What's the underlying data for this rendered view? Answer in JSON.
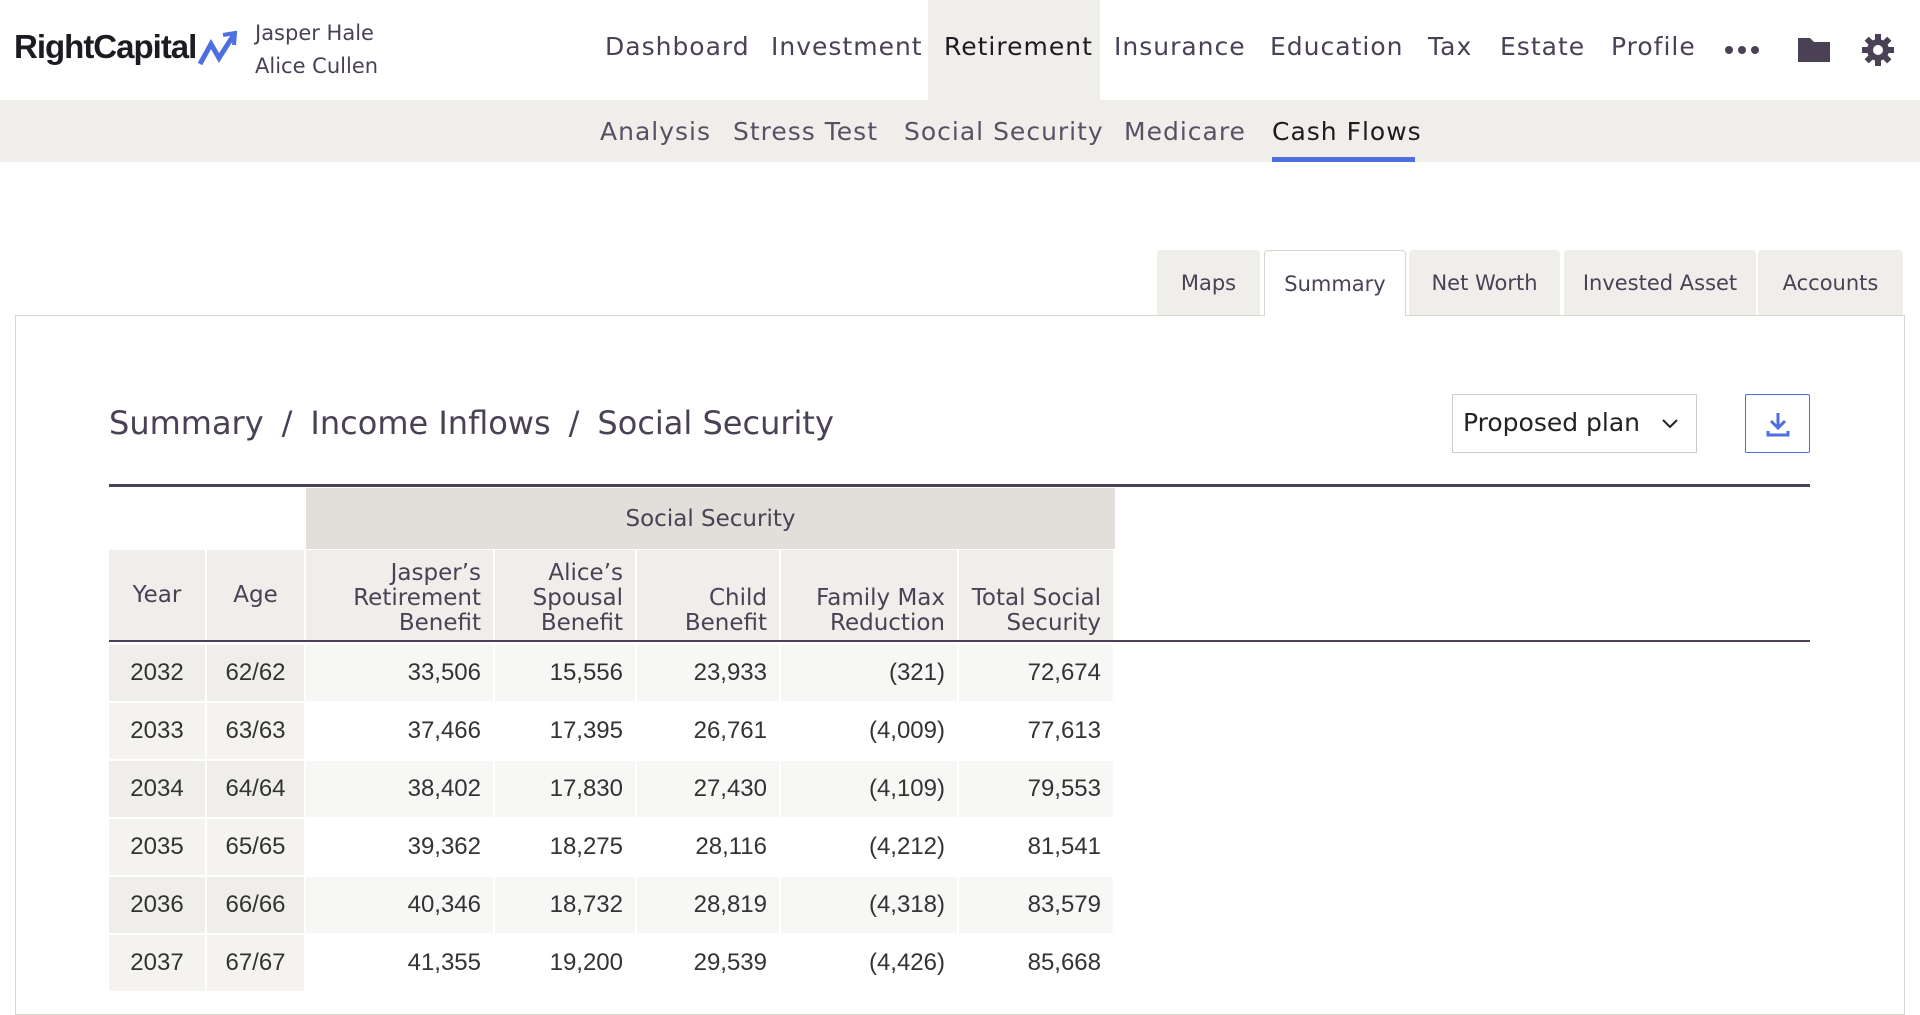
{
  "header": {
    "logo": "RightCapital",
    "clients": [
      "Jasper Hale",
      "Alice Cullen"
    ],
    "nav": [
      "Dashboard",
      "Investment",
      "Retirement",
      "Insurance",
      "Education",
      "Tax",
      "Estate",
      "Profile"
    ],
    "subnav": [
      "Analysis",
      "Stress Test",
      "Social Security",
      "Medicare",
      "Cash Flows"
    ]
  },
  "tabs": [
    "Maps",
    "Summary",
    "Net Worth",
    "Invested Asset",
    "Accounts"
  ],
  "breadcrumb": [
    "Summary",
    "Income Inflows",
    "Social Security"
  ],
  "plan_select": "Proposed plan",
  "table": {
    "group_header": "Social Security",
    "columns": [
      [
        "Year"
      ],
      [
        "Age"
      ],
      [
        "Jasper’s",
        "Retirement",
        "Benefit"
      ],
      [
        "Alice’s",
        "Spousal",
        "Benefit"
      ],
      [
        "Child",
        "Benefit"
      ],
      [
        "Family Max",
        "Reduction"
      ],
      [
        "Total Social",
        "Security"
      ]
    ],
    "rows": [
      [
        "2032",
        "62/62",
        "33,506",
        "15,556",
        "23,933",
        "(321)",
        "72,674"
      ],
      [
        "2033",
        "63/63",
        "37,466",
        "17,395",
        "26,761",
        "(4,009)",
        "77,613"
      ],
      [
        "2034",
        "64/64",
        "38,402",
        "17,830",
        "27,430",
        "(4,109)",
        "79,553"
      ],
      [
        "2035",
        "65/65",
        "39,362",
        "18,275",
        "28,116",
        "(4,212)",
        "81,541"
      ],
      [
        "2036",
        "66/66",
        "40,346",
        "18,732",
        "28,819",
        "(4,318)",
        "83,579"
      ],
      [
        "2037",
        "67/67",
        "41,355",
        "19,200",
        "29,539",
        "(4,426)",
        "85,668"
      ]
    ]
  }
}
